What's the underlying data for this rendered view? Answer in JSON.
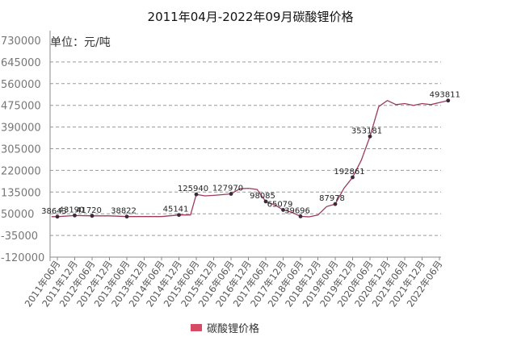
{
  "chart_data": {
    "type": "line",
    "title": "2011年04月-2022年09月碳酸锂价格",
    "unit_label": "单位：元/吨",
    "ylabel": "",
    "xlabel": "",
    "yticks": [
      "730000",
      "645000",
      "560000",
      "475000",
      "390000",
      "305000",
      "220000",
      "135000",
      "50000",
      "-35000",
      "-120000"
    ],
    "ylim": [
      -120000,
      730000
    ],
    "grid": true,
    "categories": [
      "2011年06月",
      "2011年12月",
      "2012年06月",
      "2012年12月",
      "2013年06月",
      "2013年12月",
      "2014年06月",
      "2014年12月",
      "2015年06月",
      "2015年12月",
      "2016年06月",
      "2016年12月",
      "2017年06月",
      "2017年12月",
      "2018年06月",
      "2018年12月",
      "2019年06月",
      "2019年12月",
      "2020年06月",
      "2020年12月",
      "2021年06月",
      "2021年12月",
      "2022年06月"
    ],
    "series": [
      {
        "name": "碳酸锂价格",
        "color": "#9c3a5e",
        "x": [
          "2011年04月",
          "2011年06月",
          "2011年12月",
          "2012年06月",
          "2012年12月",
          "2013年06月",
          "2013年12月",
          "2014年06月",
          "2014年12月",
          "2015年04月",
          "2015年06月",
          "2015年09月",
          "2015年12月",
          "2016年03月",
          "2016年06月",
          "2016年09月",
          "2016年12月",
          "2017年03月",
          "2017年06月",
          "2017年09月",
          "2017年12月",
          "2018年03月",
          "2018年06月",
          "2018年09月",
          "2018年12月",
          "2019年03月",
          "2019年06月",
          "2019年09月",
          "2019年12月",
          "2020年03月",
          "2020年06月",
          "2020年09月",
          "2020年12月",
          "2021年03月",
          "2021年06月",
          "2021年09月",
          "2021年12月",
          "2022年03月",
          "2022年06月",
          "2022年09月"
        ],
        "values": [
          38643,
          38643,
          43190,
          41720,
          41720,
          38822,
          38822,
          38822,
          45141,
          45141,
          125940,
          120000,
          122000,
          125000,
          127970,
          148000,
          150000,
          145000,
          98085,
          85000,
          65079,
          56000,
          39696,
          38000,
          45000,
          78000,
          87978,
          150000,
          192861,
          260000,
          353181,
          470000,
          493811,
          478000,
          482000,
          475000,
          482000,
          478000,
          486000,
          493811
        ],
        "labels": [
          {
            "i": 1,
            "text": "38643"
          },
          {
            "i": 2,
            "text": "43190"
          },
          {
            "i": 3,
            "text": "41720"
          },
          {
            "i": 5,
            "text": "38822"
          },
          {
            "i": 8,
            "text": "45141"
          },
          {
            "i": 10,
            "text": "125940"
          },
          {
            "i": 14,
            "text": "127970"
          },
          {
            "i": 18,
            "text": "98085"
          },
          {
            "i": 20,
            "text": "65079"
          },
          {
            "i": 22,
            "text": "39696"
          },
          {
            "i": 26,
            "text": "87978"
          },
          {
            "i": 28,
            "text": "192861"
          },
          {
            "i": 30,
            "text": "353181"
          },
          {
            "i": 39,
            "text": "493811"
          }
        ]
      }
    ],
    "legend": {
      "position": "bottom",
      "label": "碳酸锂价格",
      "color": "#d64a64"
    }
  }
}
